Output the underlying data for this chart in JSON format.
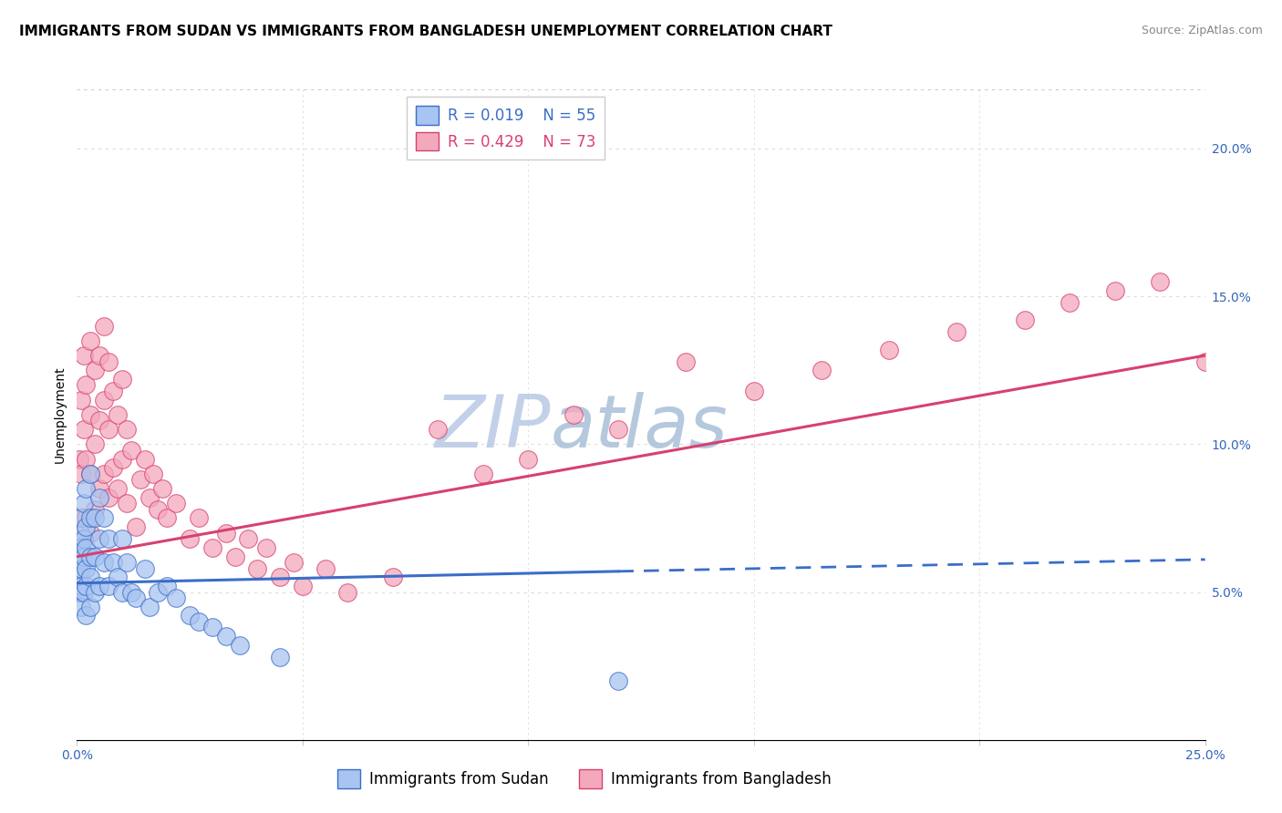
{
  "title": "IMMIGRANTS FROM SUDAN VS IMMIGRANTS FROM BANGLADESH UNEMPLOYMENT CORRELATION CHART",
  "source": "Source: ZipAtlas.com",
  "ylabel": "Unemployment",
  "x_min": 0.0,
  "x_max": 0.25,
  "y_min": 0.0,
  "y_max": 0.22,
  "x_ticks": [
    0.0,
    0.05,
    0.1,
    0.15,
    0.2,
    0.25
  ],
  "x_tick_labels": [
    "0.0%",
    "",
    "",
    "",
    "",
    "25.0%"
  ],
  "y_ticks_right": [
    0.05,
    0.1,
    0.15,
    0.2
  ],
  "y_tick_labels_right": [
    "5.0%",
    "10.0%",
    "15.0%",
    "20.0%"
  ],
  "sudan_color": "#A8C4F0",
  "bangladesh_color": "#F4A8BC",
  "sudan_line_color": "#3B6DC8",
  "bangladesh_line_color": "#D84070",
  "sudan_scatter": {
    "x": [
      0.0005,
      0.0005,
      0.0005,
      0.0008,
      0.0008,
      0.0008,
      0.001,
      0.001,
      0.001,
      0.001,
      0.001,
      0.0015,
      0.0015,
      0.0015,
      0.0015,
      0.002,
      0.002,
      0.002,
      0.002,
      0.002,
      0.002,
      0.003,
      0.003,
      0.003,
      0.003,
      0.003,
      0.004,
      0.004,
      0.004,
      0.005,
      0.005,
      0.005,
      0.006,
      0.006,
      0.007,
      0.007,
      0.008,
      0.009,
      0.01,
      0.01,
      0.011,
      0.012,
      0.013,
      0.015,
      0.016,
      0.018,
      0.02,
      0.022,
      0.025,
      0.027,
      0.03,
      0.033,
      0.036,
      0.045,
      0.12
    ],
    "y": [
      0.06,
      0.055,
      0.05,
      0.07,
      0.065,
      0.05,
      0.075,
      0.065,
      0.058,
      0.052,
      0.045,
      0.08,
      0.068,
      0.062,
      0.05,
      0.085,
      0.072,
      0.065,
      0.058,
      0.052,
      0.042,
      0.09,
      0.075,
      0.062,
      0.055,
      0.045,
      0.075,
      0.062,
      0.05,
      0.082,
      0.068,
      0.052,
      0.075,
      0.06,
      0.068,
      0.052,
      0.06,
      0.055,
      0.068,
      0.05,
      0.06,
      0.05,
      0.048,
      0.058,
      0.045,
      0.05,
      0.052,
      0.048,
      0.042,
      0.04,
      0.038,
      0.035,
      0.032,
      0.028,
      0.02
    ]
  },
  "bangladesh_scatter": {
    "x": [
      0.0005,
      0.0008,
      0.001,
      0.001,
      0.001,
      0.0015,
      0.0015,
      0.002,
      0.002,
      0.002,
      0.003,
      0.003,
      0.003,
      0.003,
      0.004,
      0.004,
      0.004,
      0.005,
      0.005,
      0.005,
      0.006,
      0.006,
      0.006,
      0.007,
      0.007,
      0.007,
      0.008,
      0.008,
      0.009,
      0.009,
      0.01,
      0.01,
      0.011,
      0.011,
      0.012,
      0.013,
      0.014,
      0.015,
      0.016,
      0.017,
      0.018,
      0.019,
      0.02,
      0.022,
      0.025,
      0.027,
      0.03,
      0.033,
      0.035,
      0.038,
      0.04,
      0.042,
      0.045,
      0.048,
      0.05,
      0.055,
      0.06,
      0.07,
      0.08,
      0.09,
      0.1,
      0.11,
      0.12,
      0.135,
      0.15,
      0.165,
      0.18,
      0.195,
      0.21,
      0.22,
      0.23,
      0.24,
      0.25
    ],
    "y": [
      0.095,
      0.075,
      0.115,
      0.09,
      0.068,
      0.13,
      0.105,
      0.12,
      0.095,
      0.075,
      0.135,
      0.11,
      0.09,
      0.07,
      0.125,
      0.1,
      0.078,
      0.13,
      0.108,
      0.085,
      0.14,
      0.115,
      0.09,
      0.128,
      0.105,
      0.082,
      0.118,
      0.092,
      0.11,
      0.085,
      0.122,
      0.095,
      0.105,
      0.08,
      0.098,
      0.072,
      0.088,
      0.095,
      0.082,
      0.09,
      0.078,
      0.085,
      0.075,
      0.08,
      0.068,
      0.075,
      0.065,
      0.07,
      0.062,
      0.068,
      0.058,
      0.065,
      0.055,
      0.06,
      0.052,
      0.058,
      0.05,
      0.055,
      0.105,
      0.09,
      0.095,
      0.11,
      0.105,
      0.128,
      0.118,
      0.125,
      0.132,
      0.138,
      0.142,
      0.148,
      0.152,
      0.155,
      0.128
    ]
  },
  "sudan_trendline": {
    "x_solid_start": 0.0,
    "x_solid_end": 0.12,
    "y_solid_start": 0.053,
    "y_solid_end": 0.057,
    "x_dashed_start": 0.12,
    "x_dashed_end": 0.25,
    "y_dashed_start": 0.057,
    "y_dashed_end": 0.061
  },
  "bangladesh_trendline": {
    "x_start": 0.0,
    "x_end": 0.25,
    "y_start": 0.062,
    "y_end": 0.13
  },
  "watermark_zip": "ZIP",
  "watermark_atlas": "atlas",
  "watermark_color_zip": "#C8D4EC",
  "watermark_color_atlas": "#C8D4EC",
  "legend_R_sudan": "R = 0.019",
  "legend_N_sudan": "N = 55",
  "legend_R_bangladesh": "R = 0.429",
  "legend_N_bangladesh": "N = 73",
  "legend_label_sudan": "Immigrants from Sudan",
  "legend_label_bangladesh": "Immigrants from Bangladesh",
  "title_fontsize": 11,
  "axis_label_fontsize": 10,
  "tick_fontsize": 10,
  "legend_fontsize": 12,
  "source_fontsize": 9,
  "grid_color": "#DCDCDC",
  "top_border_color": "#CCCCCC"
}
